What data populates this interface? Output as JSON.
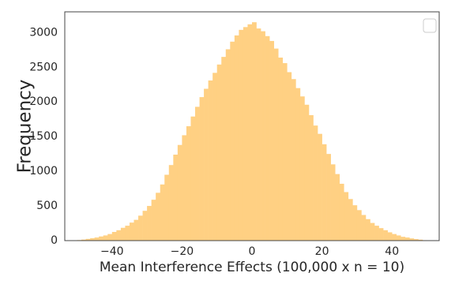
{
  "chart_data": {
    "type": "histogram",
    "xlabel": "Mean Interference Effects (100,000 x n = 10)",
    "ylabel": "Frequency",
    "color": "#ffd083",
    "bins": [
      -50,
      -48.75,
      -47.5,
      -46.25,
      -45,
      -43.75,
      -42.5,
      -41.25,
      -40,
      -38.75,
      -37.5,
      -36.25,
      -35,
      -33.75,
      -32.5,
      -31.25,
      -30,
      -28.75,
      -27.5,
      -26.25,
      -25,
      -23.75,
      -22.5,
      -21.25,
      -20,
      -18.75,
      -17.5,
      -16.25,
      -15,
      -13.75,
      -12.5,
      -11.25,
      -10,
      -8.75,
      -7.5,
      -6.25,
      -5,
      -3.75,
      -2.5,
      -1.25,
      0,
      1.25,
      2.5,
      3.75,
      5,
      6.25,
      7.5,
      8.75,
      10,
      11.25,
      12.5,
      13.75,
      15,
      16.25,
      17.5,
      18.75,
      20,
      21.25,
      22.5,
      23.75,
      25,
      26.25,
      27.5,
      28.75,
      30,
      31.25,
      32.5,
      33.75,
      35,
      36.25,
      37.5,
      38.75,
      40,
      41.25,
      42.5,
      43.75,
      45,
      46.25,
      47.5,
      48.75,
      50
    ],
    "values": [
      8,
      15,
      25,
      35,
      45,
      60,
      75,
      95,
      125,
      150,
      185,
      215,
      260,
      300,
      360,
      430,
      500,
      590,
      690,
      810,
      950,
      1090,
      1240,
      1380,
      1520,
      1650,
      1790,
      1930,
      2070,
      2190,
      2310,
      2420,
      2540,
      2650,
      2760,
      2870,
      2960,
      3040,
      3080,
      3120,
      3150,
      3060,
      3020,
      2950,
      2880,
      2770,
      2640,
      2560,
      2430,
      2330,
      2200,
      2080,
      1960,
      1810,
      1660,
      1540,
      1390,
      1250,
      1100,
      960,
      820,
      700,
      600,
      510,
      440,
      370,
      310,
      255,
      215,
      180,
      150,
      120,
      95,
      75,
      55,
      45,
      32,
      22,
      14,
      6
    ],
    "xlim": [
      -53.5,
      53.5
    ],
    "xticks": [
      {
        "value": -40,
        "label": "−40"
      },
      {
        "value": -20,
        "label": "−20"
      },
      0,
      20,
      40
    ],
    "ylim": [
      0,
      3300
    ],
    "yticks": [
      0,
      500,
      1000,
      1500,
      2000,
      2500,
      3000
    ],
    "grid": false
  }
}
